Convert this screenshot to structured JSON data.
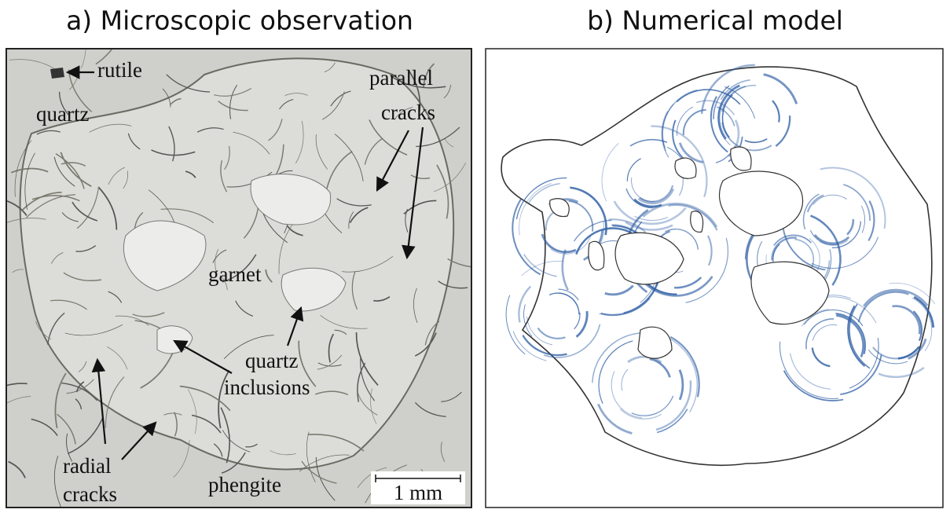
{
  "panels": [
    {
      "title": "a) Microscopic observation",
      "labels": [
        "rutile",
        "quartz",
        "parallel",
        "cracks",
        "garnet",
        "quartz",
        "inclusions",
        "radial",
        "cracks",
        "phengite"
      ],
      "scale_bar": "1 mm"
    },
    {
      "title": "b) Numerical model"
    }
  ]
}
